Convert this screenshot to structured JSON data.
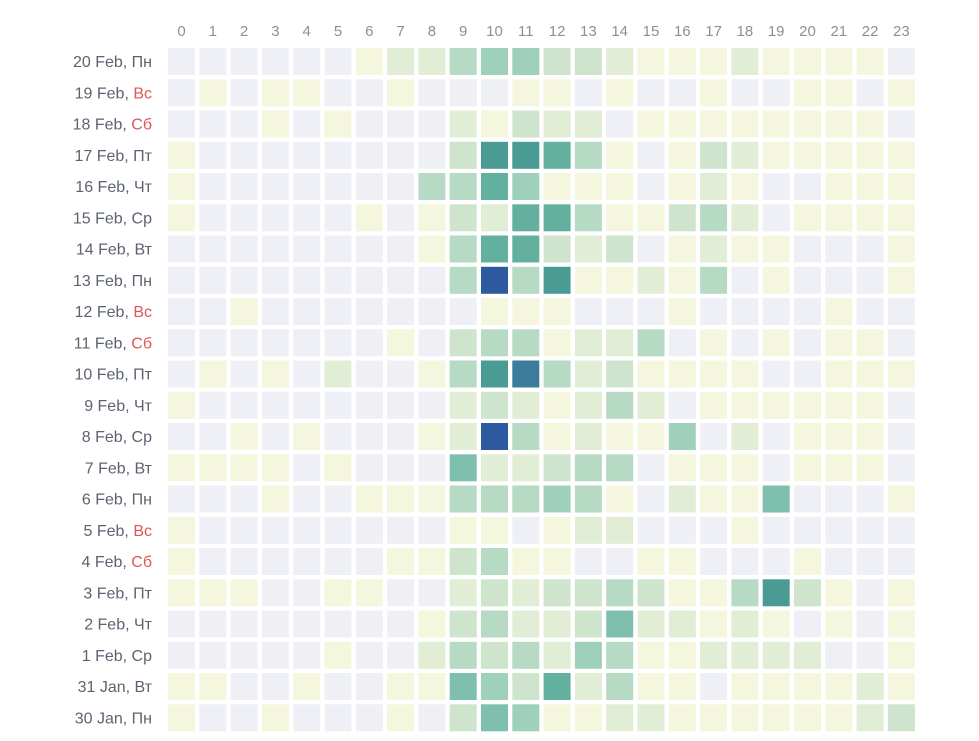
{
  "chart_data": {
    "type": "heatmap",
    "x_labels": [
      "0",
      "1",
      "2",
      "3",
      "4",
      "5",
      "6",
      "7",
      "8",
      "9",
      "10",
      "11",
      "12",
      "13",
      "14",
      "15",
      "16",
      "17",
      "18",
      "19",
      "20",
      "21",
      "22",
      "23"
    ],
    "rows": [
      {
        "date": "20 Feb,",
        "day": "Пн",
        "weekend": false,
        "values": [
          0,
          0,
          0,
          0,
          0,
          0,
          1,
          2,
          2,
          4,
          5,
          5,
          3,
          3,
          2,
          1,
          1,
          1,
          2,
          1,
          1,
          1,
          1,
          0
        ]
      },
      {
        "date": "19 Feb,",
        "day": "Вс",
        "weekend": true,
        "values": [
          0,
          1,
          0,
          1,
          1,
          0,
          0,
          1,
          0,
          0,
          0,
          1,
          1,
          0,
          1,
          0,
          0,
          1,
          0,
          0,
          1,
          1,
          0,
          1
        ]
      },
      {
        "date": "18 Feb,",
        "day": "Сб",
        "weekend": true,
        "values": [
          0,
          0,
          0,
          1,
          0,
          1,
          0,
          0,
          0,
          2,
          1,
          3,
          2,
          2,
          0,
          1,
          1,
          1,
          1,
          1,
          1,
          1,
          1,
          0
        ]
      },
      {
        "date": "17 Feb,",
        "day": "Пт",
        "weekend": false,
        "values": [
          1,
          0,
          0,
          0,
          0,
          0,
          0,
          0,
          0,
          3,
          8,
          8,
          7,
          4,
          1,
          0,
          1,
          3,
          2,
          1,
          1,
          1,
          1,
          1
        ]
      },
      {
        "date": "16 Feb,",
        "day": "Чт",
        "weekend": false,
        "values": [
          1,
          0,
          0,
          0,
          0,
          0,
          0,
          0,
          4,
          4,
          7,
          5,
          1,
          1,
          1,
          0,
          1,
          2,
          1,
          0,
          0,
          1,
          1,
          1
        ]
      },
      {
        "date": "15 Feb,",
        "day": "Ср",
        "weekend": false,
        "values": [
          1,
          0,
          0,
          0,
          0,
          0,
          1,
          0,
          1,
          3,
          2,
          7,
          7,
          4,
          1,
          1,
          3,
          4,
          2,
          0,
          1,
          1,
          1,
          1
        ]
      },
      {
        "date": "14 Feb,",
        "day": "Вт",
        "weekend": false,
        "values": [
          0,
          0,
          0,
          0,
          0,
          0,
          0,
          0,
          1,
          4,
          7,
          7,
          3,
          2,
          3,
          0,
          1,
          2,
          1,
          1,
          0,
          0,
          0,
          1
        ]
      },
      {
        "date": "13 Feb,",
        "day": "Пн",
        "weekend": false,
        "values": [
          0,
          0,
          0,
          0,
          0,
          0,
          0,
          0,
          0,
          4,
          10,
          4,
          8,
          1,
          1,
          2,
          1,
          4,
          0,
          1,
          0,
          0,
          0,
          1
        ]
      },
      {
        "date": "12 Feb,",
        "day": "Вс",
        "weekend": true,
        "values": [
          0,
          0,
          1,
          0,
          0,
          0,
          0,
          0,
          0,
          0,
          1,
          1,
          1,
          0,
          0,
          0,
          1,
          0,
          0,
          0,
          0,
          1,
          0,
          0
        ]
      },
      {
        "date": "11 Feb,",
        "day": "Сб",
        "weekend": true,
        "values": [
          0,
          0,
          0,
          0,
          0,
          0,
          0,
          1,
          0,
          3,
          4,
          4,
          1,
          2,
          2,
          4,
          0,
          1,
          0,
          1,
          0,
          1,
          1,
          0
        ]
      },
      {
        "date": "10 Feb,",
        "day": "Пт",
        "weekend": false,
        "values": [
          0,
          1,
          0,
          1,
          0,
          2,
          0,
          0,
          1,
          4,
          8,
          9,
          4,
          2,
          3,
          1,
          1,
          1,
          1,
          0,
          0,
          1,
          1,
          1
        ]
      },
      {
        "date": "9 Feb,",
        "day": "Чт",
        "weekend": false,
        "values": [
          1,
          0,
          0,
          0,
          0,
          0,
          0,
          0,
          0,
          2,
          3,
          2,
          1,
          2,
          4,
          2,
          0,
          1,
          1,
          1,
          1,
          1,
          1,
          0
        ]
      },
      {
        "date": "8 Feb,",
        "day": "Ср",
        "weekend": false,
        "values": [
          0,
          0,
          1,
          0,
          1,
          0,
          0,
          0,
          1,
          2,
          10,
          4,
          1,
          2,
          1,
          1,
          5,
          0,
          2,
          0,
          1,
          1,
          1,
          0
        ]
      },
      {
        "date": "7 Feb,",
        "day": "Вт",
        "weekend": false,
        "values": [
          1,
          1,
          1,
          1,
          0,
          1,
          0,
          0,
          0,
          6,
          2,
          2,
          3,
          4,
          4,
          0,
          1,
          1,
          1,
          0,
          1,
          1,
          1,
          0
        ]
      },
      {
        "date": "6 Feb,",
        "day": "Пн",
        "weekend": false,
        "values": [
          0,
          0,
          0,
          1,
          0,
          0,
          1,
          1,
          1,
          4,
          4,
          4,
          5,
          4,
          1,
          0,
          2,
          1,
          1,
          6,
          0,
          0,
          0,
          1
        ]
      },
      {
        "date": "5 Feb,",
        "day": "Вс",
        "weekend": true,
        "values": [
          1,
          0,
          0,
          0,
          0,
          0,
          0,
          0,
          0,
          1,
          1,
          0,
          1,
          2,
          2,
          0,
          0,
          0,
          1,
          0,
          0,
          0,
          0,
          0
        ]
      },
      {
        "date": "4 Feb,",
        "day": "Сб",
        "weekend": true,
        "values": [
          1,
          0,
          0,
          0,
          0,
          0,
          0,
          1,
          1,
          3,
          4,
          1,
          1,
          0,
          0,
          1,
          1,
          0,
          0,
          0,
          1,
          0,
          0,
          0
        ]
      },
      {
        "date": "3 Feb,",
        "day": "Пт",
        "weekend": false,
        "values": [
          1,
          1,
          1,
          0,
          0,
          1,
          1,
          0,
          0,
          2,
          3,
          2,
          3,
          3,
          4,
          3,
          1,
          1,
          4,
          8,
          3,
          1,
          0,
          1
        ]
      },
      {
        "date": "2 Feb,",
        "day": "Чт",
        "weekend": false,
        "values": [
          0,
          0,
          0,
          0,
          0,
          0,
          0,
          0,
          1,
          3,
          4,
          2,
          2,
          3,
          6,
          2,
          2,
          1,
          2,
          1,
          0,
          1,
          0,
          1
        ]
      },
      {
        "date": "1 Feb,",
        "day": "Ср",
        "weekend": false,
        "values": [
          0,
          0,
          0,
          0,
          0,
          1,
          0,
          0,
          2,
          4,
          3,
          4,
          2,
          5,
          4,
          1,
          1,
          2,
          2,
          2,
          2,
          0,
          0,
          1
        ]
      },
      {
        "date": "31 Jan,",
        "day": "Вт",
        "weekend": false,
        "values": [
          1,
          1,
          0,
          0,
          1,
          0,
          0,
          1,
          1,
          6,
          5,
          3,
          7,
          2,
          4,
          1,
          1,
          0,
          1,
          1,
          1,
          1,
          2,
          1
        ]
      },
      {
        "date": "30 Jan,",
        "day": "Пн",
        "weekend": false,
        "values": [
          1,
          0,
          0,
          1,
          0,
          0,
          0,
          1,
          0,
          3,
          6,
          5,
          1,
          1,
          2,
          2,
          1,
          1,
          1,
          1,
          1,
          1,
          2,
          3
        ]
      }
    ],
    "color_scale": {
      "empty": "#eef0f5",
      "stops": [
        "#f4f7dd",
        "#e1edd4",
        "#cfe4cd",
        "#b6dac3",
        "#9fd0bb",
        "#7fbfad",
        "#64b09f",
        "#4a9b93",
        "#3d7b9b",
        "#2d5a9e"
      ],
      "max": 10
    },
    "colors": {
      "tick_text": "#8a8f99",
      "day_text": "#5c6370",
      "weekend_text": "#e05555"
    }
  }
}
